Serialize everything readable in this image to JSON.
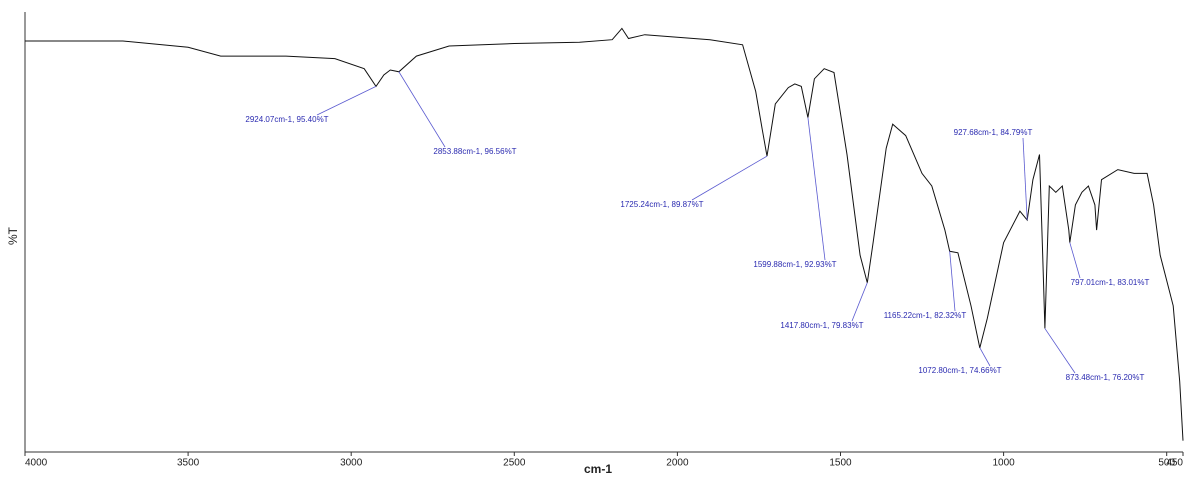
{
  "chart_data": {
    "type": "line",
    "x_label": "cm-1",
    "y_label": "%T",
    "xlim": [
      4000,
      450
    ],
    "ylim": [
      66.4,
      101.3
    ],
    "xticks": [
      4000,
      3500,
      3000,
      2500,
      2000,
      1500,
      1000,
      500,
      450
    ],
    "series": [
      {
        "name": "%T",
        "color": "#111111",
        "x": [
          4000,
          3700,
          3500,
          3400,
          3200,
          3050,
          2960,
          2924.07,
          2900,
          2880,
          2853.88,
          2800,
          2700,
          2500,
          2300,
          2200,
          2170,
          2150,
          2100,
          2000,
          1900,
          1800,
          1760,
          1740,
          1725.24,
          1700,
          1660,
          1640,
          1620,
          1599.88,
          1580,
          1550,
          1520,
          1480,
          1440,
          1417.8,
          1400,
          1360,
          1340,
          1300,
          1250,
          1220,
          1180,
          1165.22,
          1140,
          1100,
          1072.8,
          1050,
          1000,
          950,
          927.68,
          910,
          890,
          880,
          873.48,
          860,
          840,
          820,
          800,
          797.01,
          780,
          760,
          740,
          720,
          715,
          700,
          650,
          600,
          560,
          540,
          520,
          500,
          480,
          460,
          450
        ],
        "values": [
          99.0,
          99.0,
          98.5,
          97.8,
          97.8,
          97.6,
          96.8,
          95.4,
          96.3,
          96.7,
          96.56,
          97.8,
          98.6,
          98.8,
          98.9,
          99.1,
          100.0,
          99.2,
          99.5,
          99.3,
          99.1,
          98.7,
          95.0,
          92.0,
          89.87,
          94.0,
          95.3,
          95.6,
          95.4,
          92.93,
          96.0,
          96.8,
          96.5,
          90.0,
          82.0,
          79.83,
          83.0,
          90.5,
          92.4,
          91.5,
          88.5,
          87.5,
          84.0,
          82.32,
          82.2,
          78.0,
          74.66,
          77.0,
          83.0,
          85.5,
          84.79,
          88.0,
          90.0,
          82.0,
          76.2,
          87.5,
          87.0,
          87.5,
          84.0,
          83.01,
          86.0,
          87.0,
          87.5,
          86.0,
          84.0,
          88.0,
          88.8,
          88.5,
          88.5,
          86.0,
          82.0,
          80.0,
          78.0,
          72.0,
          67.3
        ]
      }
    ],
    "annotations": [
      {
        "text": "2924.07cm-1, 95.40%T",
        "x": 2924.07,
        "y": 95.4
      },
      {
        "text": "2853.88cm-1, 96.56%T",
        "x": 2853.88,
        "y": 96.56
      },
      {
        "text": "1725.24cm-1, 89.87%T",
        "x": 1725.24,
        "y": 89.87
      },
      {
        "text": "1599.88cm-1, 92.93%T",
        "x": 1599.88,
        "y": 92.93
      },
      {
        "text": "1417.80cm-1, 79.83%T",
        "x": 1417.8,
        "y": 79.83
      },
      {
        "text": "1165.22cm-1, 82.32%T",
        "x": 1165.22,
        "y": 82.32
      },
      {
        "text": "1072.80cm-1, 74.66%T",
        "x": 1072.8,
        "y": 74.66
      },
      {
        "text": "927.68cm-1, 84.79%T",
        "x": 927.68,
        "y": 84.79
      },
      {
        "text": "873.48cm-1, 76.20%T",
        "x": 873.48,
        "y": 76.2
      },
      {
        "text": "797.01cm-1, 83.01%T",
        "x": 797.01,
        "y": 83.01
      }
    ]
  }
}
